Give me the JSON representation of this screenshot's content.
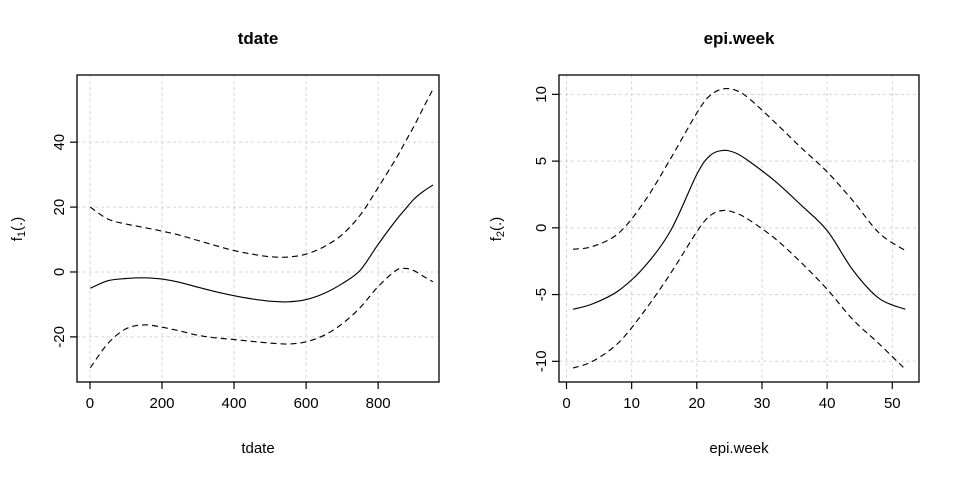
{
  "figure": {
    "background": "#ffffff",
    "foreground": "#000000",
    "grid_color": "#d3d3d3",
    "line_color": "#000000"
  },
  "chart_data": [
    {
      "type": "line",
      "panel": "left",
      "title": "tdate",
      "xlabel": "tdate",
      "ylabel": "f1(.)",
      "ylabel_parts": [
        "f",
        "1",
        "(.)"
      ],
      "xlim": [
        -36,
        969
      ],
      "ylim": [
        -33.9,
        60.7
      ],
      "xticks": [
        0,
        200,
        400,
        600,
        800
      ],
      "yticks": [
        -20,
        0,
        20,
        40
      ],
      "grid": true,
      "grid_style": "dotted",
      "legend": "none",
      "x": [
        1,
        50,
        100,
        150,
        200,
        250,
        300,
        350,
        400,
        450,
        500,
        550,
        600,
        650,
        700,
        750,
        800,
        850,
        875,
        900,
        925,
        952
      ],
      "series": [
        {
          "name": "fit",
          "style": "solid",
          "values": [
            -5.0,
            -2.7,
            -2.0,
            -1.8,
            -2.2,
            -3.2,
            -4.7,
            -6.1,
            -7.3,
            -8.3,
            -9.0,
            -9.2,
            -8.5,
            -6.6,
            -3.6,
            0.5,
            8.5,
            16.0,
            19.3,
            22.5,
            24.8,
            26.8
          ]
        },
        {
          "name": "upper-95ci",
          "style": "dashed",
          "values": [
            20.0,
            16.3,
            14.8,
            13.7,
            12.6,
            11.3,
            9.7,
            8.1,
            6.6,
            5.5,
            4.7,
            4.6,
            5.5,
            7.8,
            11.5,
            17.5,
            26.0,
            35.0,
            40.0,
            45.0,
            50.5,
            56.3
          ]
        },
        {
          "name": "lower-95ci",
          "style": "dashed",
          "values": [
            -29.5,
            -22.0,
            -17.5,
            -16.3,
            -17.0,
            -18.2,
            -19.5,
            -20.3,
            -20.8,
            -21.4,
            -21.9,
            -22.2,
            -21.5,
            -19.5,
            -16.0,
            -11.0,
            -4.5,
            0.5,
            1.1,
            0.4,
            -1.3,
            -3.0
          ]
        }
      ]
    },
    {
      "type": "line",
      "panel": "right",
      "title": "epi.week",
      "xlabel": "epi.week",
      "ylabel": "f2(.)",
      "ylabel_parts": [
        "f",
        "2",
        "(.)"
      ],
      "xlim": [
        -1.15,
        54.1
      ],
      "ylim": [
        -11.55,
        11.45
      ],
      "xticks": [
        0,
        10,
        20,
        30,
        40,
        50
      ],
      "yticks": [
        -10,
        -5,
        0,
        5,
        10
      ],
      "grid": true,
      "grid_style": "dotted",
      "legend": "none",
      "x": [
        1,
        4,
        8,
        12,
        16,
        20,
        22,
        24,
        26,
        28,
        32,
        36,
        40,
        44,
        48,
        52
      ],
      "series": [
        {
          "name": "fit",
          "style": "solid",
          "values": [
            -6.1,
            -5.7,
            -4.7,
            -2.9,
            -0.2,
            4.0,
            5.4,
            5.8,
            5.6,
            5.0,
            3.5,
            1.7,
            -0.2,
            -3.2,
            -5.3,
            -6.1
          ]
        },
        {
          "name": "upper-95ci",
          "style": "dashed",
          "values": [
            -1.6,
            -1.4,
            -0.4,
            2.0,
            5.2,
            8.6,
            9.9,
            10.4,
            10.3,
            9.7,
            7.9,
            6.0,
            4.2,
            2.0,
            -0.4,
            -1.7
          ]
        },
        {
          "name": "lower-95ci",
          "style": "dashed",
          "values": [
            -10.5,
            -10.0,
            -8.6,
            -6.2,
            -3.4,
            -0.3,
            0.9,
            1.3,
            1.1,
            0.6,
            -0.8,
            -2.6,
            -4.6,
            -6.9,
            -8.7,
            -10.6
          ]
        }
      ]
    }
  ]
}
